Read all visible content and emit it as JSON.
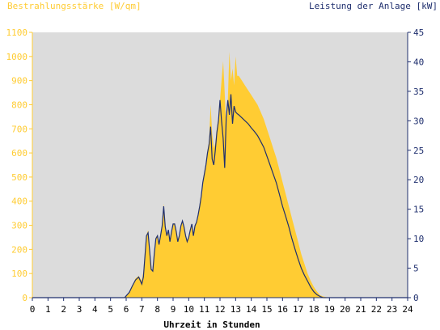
{
  "chart_data": {
    "type": "area",
    "left_axis_title": "Bestrahlungsstärke [W/qm]",
    "right_axis_title": "Leistung der Anlage [kW]",
    "xlabel": "Uhrzeit in Stunden",
    "xlim": [
      0,
      24
    ],
    "ylim_left": [
      0,
      1100
    ],
    "ylim_right": [
      0,
      45
    ],
    "x_ticks": [
      "0",
      "1",
      "2",
      "3",
      "4",
      "5",
      "6",
      "7",
      "8",
      "9",
      "10",
      "11",
      "12",
      "13",
      "14",
      "15",
      "16",
      "17",
      "18",
      "19",
      "20",
      "21",
      "22",
      "23",
      "24"
    ],
    "y_left_ticks": [
      "0",
      "100",
      "200",
      "300",
      "400",
      "500",
      "600",
      "700",
      "800",
      "900",
      "1000",
      "1100"
    ],
    "y_right_ticks": [
      "0",
      "5",
      "10",
      "15",
      "20",
      "25",
      "30",
      "35",
      "40",
      "45"
    ],
    "grid": false,
    "colors": {
      "irradiance": "#ffcc33",
      "power": "#1f2f6e",
      "plot_bg": "#dcdcdc",
      "left_axis": "#ffcc33",
      "right_axis": "#1f2f6e"
    },
    "series": [
      {
        "name": "Bestrahlungsstärke [W/qm]",
        "axis": "left",
        "x": [
          0,
          5.9,
          6.0,
          6.2,
          6.4,
          6.6,
          6.8,
          7.0,
          7.1,
          7.2,
          7.3,
          7.4,
          7.5,
          7.6,
          7.7,
          7.8,
          7.9,
          8.0,
          8.1,
          8.2,
          8.3,
          8.4,
          8.5,
          8.6,
          8.7,
          8.8,
          8.9,
          9.0,
          9.1,
          9.2,
          9.3,
          9.4,
          9.5,
          9.6,
          9.7,
          9.8,
          9.9,
          10.0,
          10.1,
          10.2,
          10.3,
          10.4,
          10.5,
          10.6,
          10.7,
          10.8,
          10.9,
          11.0,
          11.1,
          11.2,
          11.3,
          11.4,
          11.5,
          11.6,
          11.7,
          11.8,
          11.9,
          12.0,
          12.1,
          12.2,
          12.3,
          12.4,
          12.5,
          12.6,
          12.7,
          12.8,
          12.9,
          13.0,
          13.1,
          13.2,
          13.4,
          13.6,
          13.8,
          14.0,
          14.2,
          14.4,
          14.6,
          14.8,
          15.0,
          15.2,
          15.4,
          15.6,
          15.8,
          16.0,
          16.2,
          16.4,
          16.6,
          16.8,
          17.0,
          17.2,
          17.4,
          17.6,
          17.8,
          18.0,
          18.2,
          18.4,
          18.6,
          18.8,
          19.0,
          19.2,
          19.4,
          19.6,
          19.8,
          20.0,
          24
        ],
        "values": [
          0,
          0,
          5,
          20,
          50,
          80,
          90,
          70,
          110,
          180,
          260,
          280,
          200,
          120,
          110,
          180,
          250,
          260,
          220,
          250,
          300,
          390,
          300,
          260,
          280,
          230,
          270,
          300,
          310,
          280,
          240,
          260,
          300,
          320,
          300,
          260,
          230,
          250,
          280,
          300,
          260,
          300,
          310,
          340,
          380,
          420,
          480,
          520,
          560,
          610,
          650,
          800,
          680,
          620,
          640,
          700,
          750,
          820,
          900,
          980,
          850,
          700,
          820,
          1020,
          900,
          950,
          880,
          1000,
          920,
          920,
          900,
          880,
          860,
          840,
          820,
          800,
          770,
          740,
          700,
          660,
          620,
          580,
          530,
          480,
          430,
          380,
          330,
          280,
          230,
          180,
          140,
          100,
          70,
          45,
          25,
          10,
          5,
          2,
          0,
          0,
          0,
          0,
          0,
          0,
          0
        ]
      },
      {
        "name": "Leistung der Anlage [kW]",
        "axis": "right",
        "x": [
          0,
          5.9,
          6.0,
          6.2,
          6.4,
          6.6,
          6.8,
          7.0,
          7.1,
          7.2,
          7.3,
          7.4,
          7.5,
          7.6,
          7.7,
          7.8,
          7.9,
          8.0,
          8.1,
          8.2,
          8.3,
          8.4,
          8.5,
          8.6,
          8.7,
          8.8,
          8.9,
          9.0,
          9.1,
          9.2,
          9.3,
          9.4,
          9.5,
          9.6,
          9.7,
          9.8,
          9.9,
          10.0,
          10.1,
          10.2,
          10.3,
          10.4,
          10.5,
          10.6,
          10.7,
          10.8,
          10.9,
          11.0,
          11.1,
          11.2,
          11.3,
          11.4,
          11.5,
          11.6,
          11.7,
          11.8,
          11.9,
          12.0,
          12.1,
          12.2,
          12.3,
          12.4,
          12.5,
          12.6,
          12.7,
          12.8,
          12.9,
          13.0,
          13.1,
          13.2,
          13.4,
          13.6,
          13.8,
          14.0,
          14.2,
          14.4,
          14.6,
          14.8,
          15.0,
          15.2,
          15.4,
          15.6,
          15.8,
          16.0,
          16.2,
          16.4,
          16.6,
          16.8,
          17.0,
          17.2,
          17.4,
          17.6,
          17.8,
          18.0,
          18.2,
          18.4,
          18.6,
          18.8,
          19.0,
          19.2,
          19.4,
          19.6,
          19.8,
          20.0,
          24
        ],
        "values": [
          0,
          0,
          0.3,
          0.9,
          2.0,
          3.0,
          3.5,
          2.3,
          3.5,
          7.0,
          10.5,
          11.0,
          8.0,
          4.8,
          4.5,
          7.5,
          10.0,
          10.5,
          9.0,
          10.5,
          12.2,
          15.5,
          12.0,
          10.5,
          11.5,
          9.5,
          11.2,
          12.5,
          12.5,
          11.2,
          9.5,
          10.5,
          12.2,
          13.0,
          12.0,
          10.5,
          9.5,
          10.2,
          11.5,
          12.5,
          10.5,
          12.2,
          12.8,
          14.0,
          15.5,
          17.2,
          19.5,
          21.0,
          22.5,
          24.5,
          26.0,
          29.0,
          23.5,
          22.5,
          25.0,
          28.0,
          30.0,
          33.5,
          30.0,
          27.0,
          22.0,
          30.5,
          33.5,
          31.0,
          34.5,
          29.5,
          32.5,
          31.5,
          31.2,
          31.0,
          30.5,
          30.0,
          29.5,
          28.8,
          28.2,
          27.5,
          26.5,
          25.5,
          24.0,
          22.5,
          21.0,
          19.5,
          17.5,
          15.5,
          13.8,
          12.0,
          10.0,
          8.2,
          6.5,
          5.0,
          3.8,
          2.8,
          1.8,
          1.0,
          0.5,
          0.2,
          0,
          0,
          0,
          0,
          0,
          0,
          0,
          0,
          0
        ]
      }
    ]
  }
}
